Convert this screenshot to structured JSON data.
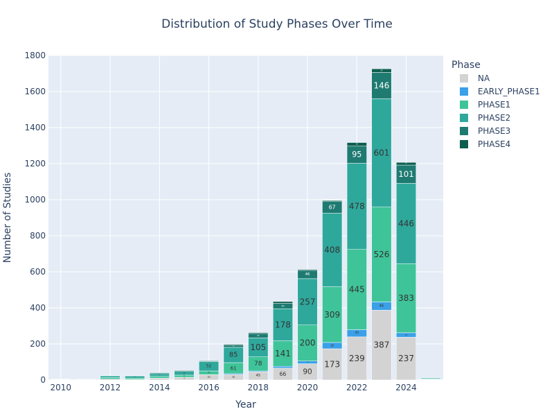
{
  "chart_data": {
    "type": "bar",
    "stacked": true,
    "title": "Distribution of Study Phases Over Time",
    "xlabel": "Year",
    "ylabel": "Number of Studies",
    "legend_title": "Phase",
    "legend_position": "right",
    "ylim": [
      0,
      1800
    ],
    "y_ticks": [
      0,
      200,
      400,
      600,
      800,
      1000,
      1200,
      1400,
      1600,
      1800
    ],
    "x_ticks": [
      2010,
      2012,
      2014,
      2016,
      2018,
      2020,
      2022,
      2024
    ],
    "xlim": [
      2009.5,
      2025.5
    ],
    "grid": true,
    "plot_background": "#E5ECF6",
    "categories": [
      2010,
      2011,
      2012,
      2013,
      2014,
      2015,
      2016,
      2017,
      2018,
      2019,
      2020,
      2021,
      2022,
      2023,
      2024,
      2025
    ],
    "series": [
      {
        "name": "NA",
        "color": "#D3D3D3",
        "values": [
          2,
          2,
          5,
          3,
          10,
          15,
          30,
          30,
          45,
          66,
          90,
          173,
          239,
          387,
          237,
          2
        ]
      },
      {
        "name": "EARLY_PHASE1",
        "color": "#3AA0E8",
        "values": [
          0,
          0,
          0,
          0,
          0,
          0,
          0,
          5,
          5,
          10,
          15,
          35,
          40,
          46,
          25,
          1
        ]
      },
      {
        "name": "PHASE1",
        "color": "#3FC49A",
        "values": [
          1,
          1,
          8,
          7,
          10,
          12,
          20,
          61,
          78,
          141,
          200,
          309,
          445,
          526,
          383,
          3
        ]
      },
      {
        "name": "PHASE2",
        "color": "#2FA89C",
        "values": [
          2,
          1,
          10,
          12,
          15,
          20,
          52,
          85,
          105,
          178,
          257,
          408,
          478,
          601,
          446,
          5
        ]
      },
      {
        "name": "PHASE3",
        "color": "#1F7B72",
        "values": [
          1,
          0,
          2,
          2,
          5,
          5,
          4,
          12,
          25,
          30,
          46,
          67,
          95,
          146,
          101,
          2
        ]
      },
      {
        "name": "PHASE4",
        "color": "#0E5E4E",
        "values": [
          0,
          0,
          0,
          0,
          0,
          0,
          0,
          5,
          5,
          10,
          5,
          4,
          20,
          20,
          15,
          0
        ]
      }
    ]
  }
}
